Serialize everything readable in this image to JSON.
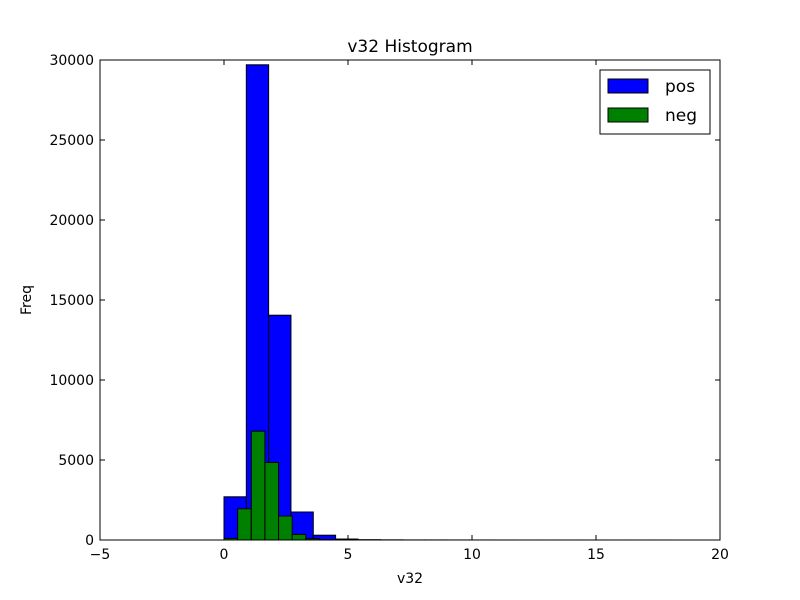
{
  "chart_data": {
    "type": "bar",
    "title": "v32 Histogram",
    "xlabel": "v32",
    "ylabel": "Freq",
    "xlim": [
      -5,
      20
    ],
    "ylim": [
      0,
      30000
    ],
    "xticks": [
      -5,
      0,
      5,
      10,
      15,
      20
    ],
    "yticks": [
      0,
      5000,
      10000,
      15000,
      20000,
      25000,
      30000
    ],
    "grid": false,
    "legend_position": "top-right",
    "series": [
      {
        "name": "pos",
        "color": "#0000ff",
        "bins": [
          {
            "x0": 0.0,
            "x1": 0.9,
            "count": 2700
          },
          {
            "x0": 0.9,
            "x1": 1.8,
            "count": 29700
          },
          {
            "x0": 1.8,
            "x1": 2.7,
            "count": 14050
          },
          {
            "x0": 2.7,
            "x1": 3.6,
            "count": 1750
          },
          {
            "x0": 3.6,
            "x1": 4.5,
            "count": 300
          },
          {
            "x0": 4.5,
            "x1": 5.4,
            "count": 60
          },
          {
            "x0": 5.4,
            "x1": 6.3,
            "count": 20
          },
          {
            "x0": 6.3,
            "x1": 7.2,
            "count": 10
          },
          {
            "x0": 7.2,
            "x1": 8.1,
            "count": 5
          },
          {
            "x0": 8.1,
            "x1": 9.0,
            "count": 5
          },
          {
            "x0": 9.0,
            "x1": 9.9,
            "count": 3
          },
          {
            "x0": 9.9,
            "x1": 10.8,
            "count": 3
          },
          {
            "x0": 10.8,
            "x1": 11.7,
            "count": 2
          },
          {
            "x0": 11.7,
            "x1": 12.6,
            "count": 1
          },
          {
            "x0": 12.6,
            "x1": 13.5,
            "count": 1
          },
          {
            "x0": 13.5,
            "x1": 14.4,
            "count": 1
          },
          {
            "x0": 14.4,
            "x1": 15.3,
            "count": 1
          },
          {
            "x0": 15.3,
            "x1": 16.2,
            "count": 1
          },
          {
            "x0": 16.2,
            "x1": 17.1,
            "count": 1
          },
          {
            "x0": 17.1,
            "x1": 18.0,
            "count": 1
          }
        ]
      },
      {
        "name": "neg",
        "color": "#008000",
        "bins": [
          {
            "x0": 0.0,
            "x1": 0.55,
            "count": 100
          },
          {
            "x0": 0.55,
            "x1": 1.1,
            "count": 1950
          },
          {
            "x0": 1.1,
            "x1": 1.65,
            "count": 6800
          },
          {
            "x0": 1.65,
            "x1": 2.2,
            "count": 4850
          },
          {
            "x0": 2.2,
            "x1": 2.75,
            "count": 1500
          },
          {
            "x0": 2.75,
            "x1": 3.3,
            "count": 350
          },
          {
            "x0": 3.3,
            "x1": 3.85,
            "count": 80
          },
          {
            "x0": 3.85,
            "x1": 4.4,
            "count": 30
          },
          {
            "x0": 4.4,
            "x1": 4.95,
            "count": 15
          },
          {
            "x0": 4.95,
            "x1": 5.5,
            "count": 5
          }
        ]
      }
    ]
  }
}
